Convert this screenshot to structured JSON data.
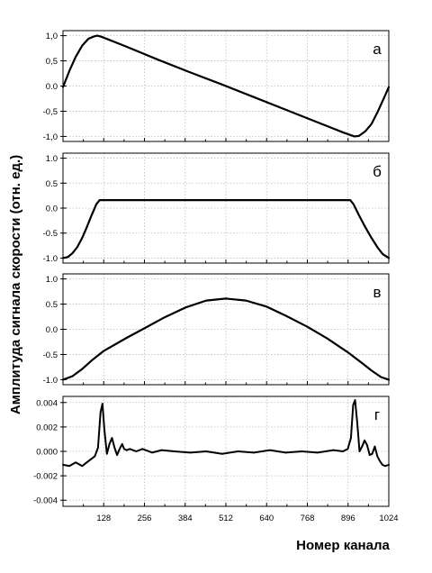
{
  "chart_data": {
    "type": "line",
    "ylabel": "Амплитуда сигнала скорости (отн. ед.)",
    "xlabel": "Номер канала",
    "xlim": [
      0,
      1024
    ],
    "x_ticks": [
      128,
      256,
      384,
      512,
      640,
      768,
      896,
      1024
    ],
    "x_tick_labels": [
      "128",
      "256",
      "384",
      "512",
      "640",
      "768",
      "896",
      "1024"
    ],
    "grid": true,
    "panels": [
      {
        "id": "a",
        "label": "а",
        "ylim": [
          -1.1,
          1.1
        ],
        "y_ticks": [
          1.0,
          0.5,
          0.0,
          -0.5,
          -1.0
        ],
        "y_tick_labels": [
          "1,0",
          "0,5",
          "0.0",
          "-0,5",
          "-1,0"
        ],
        "series": [
          {
            "x": [
              0,
              20,
              40,
              60,
              80,
              100,
              108,
              120,
              200,
              300,
              400,
              500,
              512,
              600,
              700,
              800,
              880,
              916,
              930,
              950,
              970,
              990,
              1010,
              1024
            ],
            "y": [
              -0.02,
              0.3,
              0.58,
              0.8,
              0.94,
              0.99,
              1.0,
              0.98,
              0.78,
              0.52,
              0.27,
              0.03,
              0.0,
              -0.22,
              -0.47,
              -0.72,
              -0.92,
              -1.0,
              -0.99,
              -0.9,
              -0.75,
              -0.5,
              -0.22,
              -0.02
            ]
          }
        ]
      },
      {
        "id": "b",
        "label": "б",
        "ylim": [
          -1.1,
          1.1
        ],
        "y_ticks": [
          1.0,
          0.5,
          0.0,
          -0.5,
          -1.0
        ],
        "y_tick_labels": [
          "1.0",
          "0.5",
          "0.0",
          "-0.5",
          "-1.0"
        ],
        "series": [
          {
            "x": [
              0,
              15,
              30,
              45,
              60,
              75,
              90,
              105,
              115,
              200,
              400,
              600,
              800,
              903,
              913,
              930,
              950,
              970,
              990,
              1005,
              1024
            ],
            "y": [
              -1.0,
              -0.98,
              -0.9,
              -0.78,
              -0.6,
              -0.38,
              -0.14,
              0.08,
              0.16,
              0.16,
              0.16,
              0.16,
              0.16,
              0.16,
              0.08,
              -0.14,
              -0.38,
              -0.6,
              -0.8,
              -0.92,
              -1.0
            ]
          }
        ]
      },
      {
        "id": "c",
        "label": "в",
        "ylim": [
          -1.1,
          1.1
        ],
        "y_ticks": [
          1.0,
          0.5,
          0.0,
          -0.5,
          -1.0
        ],
        "y_tick_labels": [
          "1.0",
          "0.5",
          "0.0",
          "-0.5",
          "-1.0"
        ],
        "series": [
          {
            "x": [
              0,
              30,
              60,
              90,
              128,
              200,
              256,
              320,
              384,
              450,
              512,
              575,
              640,
              700,
              768,
              830,
              896,
              940,
              970,
              1000,
              1024
            ],
            "y": [
              -1.0,
              -0.93,
              -0.79,
              -0.62,
              -0.43,
              -0.17,
              0.02,
              0.24,
              0.43,
              0.57,
              0.61,
              0.57,
              0.45,
              0.27,
              0.05,
              -0.18,
              -0.46,
              -0.67,
              -0.82,
              -0.95,
              -1.0
            ]
          }
        ]
      },
      {
        "id": "d",
        "label": "г",
        "ylim": [
          -0.0045,
          0.0045
        ],
        "y_ticks": [
          0.004,
          0.002,
          0.0,
          -0.002,
          -0.004
        ],
        "y_tick_labels": [
          "0.004",
          "0.002",
          "0.000",
          "-0.002",
          "-0.004"
        ],
        "series": [
          {
            "x": [
              0,
              20,
              40,
              60,
              80,
              100,
              110,
              118,
              124,
              130,
              138,
              146,
              154,
              162,
              170,
              178,
              186,
              192,
              200,
              210,
              230,
              250,
              280,
              310,
              350,
              400,
              450,
              500,
              550,
              600,
              650,
              700,
              750,
              800,
              850,
              880,
              895,
              905,
              912,
              918,
              925,
              932,
              940,
              948,
              956,
              964,
              972,
              980,
              988,
              996,
              1004,
              1012,
              1024
            ],
            "y": [
              -0.0011,
              -0.0012,
              -0.0009,
              -0.0012,
              -0.0008,
              -0.0004,
              0.0003,
              0.0032,
              0.0039,
              0.0018,
              -0.0002,
              0.0006,
              0.0011,
              0.0003,
              -0.0003,
              0.0002,
              0.0006,
              0.0002,
              0.0001,
              0.0002,
              0.0,
              0.0002,
              -0.0001,
              0.0001,
              0.0,
              -0.0001,
              0.0,
              -0.0002,
              0.0,
              -0.0001,
              0.0001,
              -0.0001,
              0.0,
              -0.0001,
              0.0001,
              0.0,
              0.0002,
              0.0011,
              0.0038,
              0.0042,
              0.0023,
              0.0,
              0.0004,
              0.0009,
              0.0005,
              -0.0003,
              -0.0002,
              0.0004,
              -0.0004,
              -0.0008,
              -0.0011,
              -0.0012,
              -0.0011
            ]
          }
        ]
      }
    ]
  }
}
